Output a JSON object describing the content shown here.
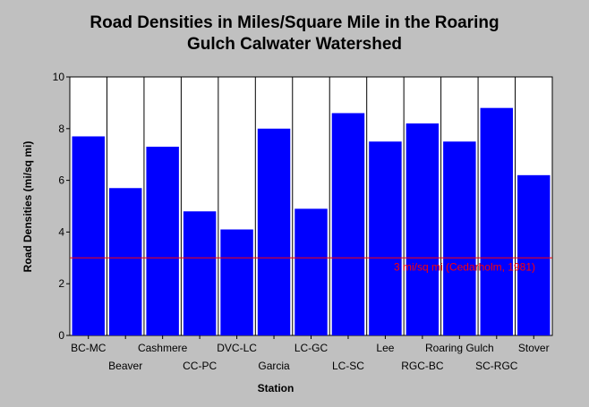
{
  "chart_data": {
    "type": "bar",
    "title_lines": [
      "Road Densities in Miles/Square Mile in the Roaring",
      "Gulch Calwater Watershed"
    ],
    "xlabel": "Station",
    "ylabel": "Road Densities (mi/sq mi)",
    "ylim": [
      0,
      10
    ],
    "yticks": [
      0,
      2,
      4,
      6,
      8,
      10
    ],
    "grid": "vertical separators between categories",
    "categories": [
      "BC-MC",
      "Beaver",
      "Cashmere",
      "CC-PC",
      "DVC-LC",
      "Garcia",
      "LC-GC",
      "LC-SC",
      "Lee",
      "RGC-BC",
      "Roaring Gulch",
      "SC-RGC",
      "Stover"
    ],
    "values": [
      7.7,
      5.7,
      7.3,
      4.8,
      4.1,
      8.0,
      4.9,
      8.6,
      7.5,
      8.2,
      7.5,
      8.8,
      6.2
    ],
    "reference_line": {
      "value": 3,
      "label": "3 mi/sq mi (Cedarholm, 1981)",
      "color": "#ff0000"
    },
    "bar_color": "#0000ff"
  }
}
